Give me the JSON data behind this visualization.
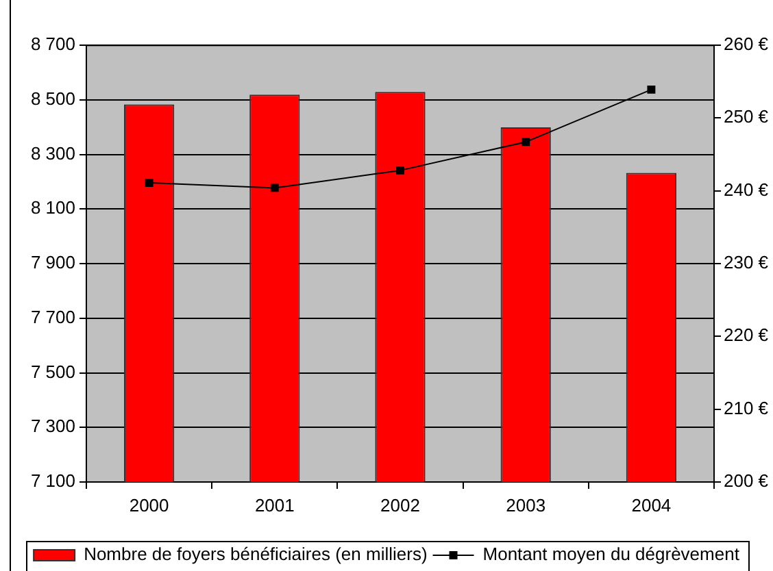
{
  "chart_data": {
    "type": "bar",
    "categories": [
      "2000",
      "2001",
      "2002",
      "2003",
      "2004"
    ],
    "series": [
      {
        "name": "Nombre de foyers bénéficiaires (en milliers)",
        "color": "#ff0000",
        "values": [
          8483,
          8519,
          8529,
          8399,
          8232
        ]
      },
      {
        "name": "Montant moyen du dégrèvement",
        "type": "line",
        "axis": "y2",
        "color": "#000000",
        "values": [
          241.1,
          240.4,
          242.8,
          246.7,
          253.9
        ]
      }
    ],
    "ylim": [
      7100,
      8700
    ],
    "yticks": [
      {
        "value": 7100,
        "label": "7 100"
      },
      {
        "value": 7300,
        "label": "7 300"
      },
      {
        "value": 7500,
        "label": "7 500"
      },
      {
        "value": 7700,
        "label": "7 700"
      },
      {
        "value": 7900,
        "label": "7 900"
      },
      {
        "value": 8100,
        "label": "8 100"
      },
      {
        "value": 8300,
        "label": "8 300"
      },
      {
        "value": 8500,
        "label": "8 500"
      },
      {
        "value": 8700,
        "label": "8 700"
      }
    ],
    "y2lim": [
      200,
      260
    ],
    "y2ticks": [
      {
        "value": 200,
        "label": "200 €"
      },
      {
        "value": 210,
        "label": "210 €"
      },
      {
        "value": 220,
        "label": "220 €"
      },
      {
        "value": 230,
        "label": "230 €"
      },
      {
        "value": 240,
        "label": "240 €"
      },
      {
        "value": 250,
        "label": "250 €"
      },
      {
        "value": 260,
        "label": "260 €"
      }
    ],
    "grid": "y",
    "legend": "bottom",
    "marker": "square"
  }
}
